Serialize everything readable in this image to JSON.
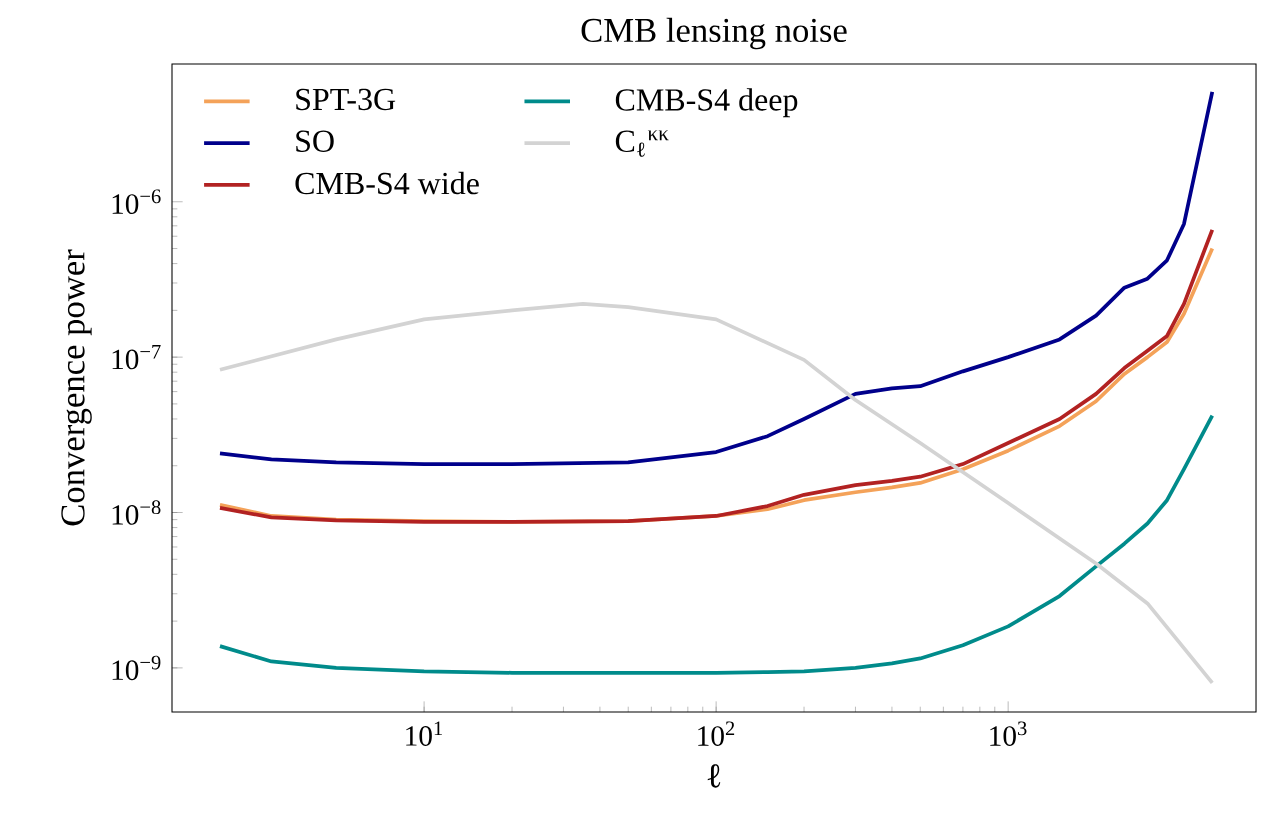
{
  "chart_data": {
    "type": "line",
    "title": "CMB lensing noise",
    "xlabel": "ℓ",
    "ylabel": "Convergence power",
    "log": "xy",
    "legend": "top left",
    "xlim": [
      1.37,
      7060
    ],
    "ylim": [
      5.2e-10,
      7.7e-06
    ],
    "xticks": [
      {
        "value": 10,
        "label": "10$^{1}$"
      },
      {
        "value": 100,
        "label": "10$^{2}$"
      },
      {
        "value": 1000,
        "label": "10$^{3}$"
      }
    ],
    "yticks": [
      {
        "value": 1e-09,
        "label": "10$^{−9}$"
      },
      {
        "value": 1e-08,
        "label": "10$^{−8}$"
      },
      {
        "value": 1e-07,
        "label": "10$^{−7}$"
      },
      {
        "value": 1e-06,
        "label": "10$^{−6}$"
      }
    ],
    "x": [
      2,
      3,
      5,
      10,
      20,
      50,
      100,
      150,
      200,
      300,
      400,
      500,
      700,
      1000,
      1500,
      2000,
      2500,
      3000,
      3500,
      4000,
      5000
    ],
    "series": [
      {
        "name": "SPT-3G",
        "color": "#f4a259",
        "values": [
          1.12e-08,
          9.5e-09,
          9e-09,
          8.8e-09,
          8.7e-09,
          8.8e-09,
          9.5e-09,
          1.05e-08,
          1.2e-08,
          1.35e-08,
          1.45e-08,
          1.55e-08,
          1.9e-08,
          2.5e-08,
          3.6e-08,
          5.2e-08,
          7.8e-08,
          1e-07,
          1.25e-07,
          1.9e-07,
          5e-07
        ]
      },
      {
        "name": "SO",
        "color": "#00008b",
        "values": [
          2.4e-08,
          2.2e-08,
          2.1e-08,
          2.05e-08,
          2.05e-08,
          2.1e-08,
          2.45e-08,
          3.1e-08,
          4e-08,
          5.8e-08,
          6.3e-08,
          6.5e-08,
          8.1e-08,
          1e-07,
          1.3e-07,
          1.85e-07,
          2.8e-07,
          3.2e-07,
          4.2e-07,
          7.2e-07,
          5.1e-06
        ]
      },
      {
        "name": "CMB-S4 wide",
        "color": "#b22222",
        "values": [
          1.07e-08,
          9.3e-09,
          8.9e-09,
          8.7e-09,
          8.7e-09,
          8.8e-09,
          9.5e-09,
          1.1e-08,
          1.3e-08,
          1.5e-08,
          1.6e-08,
          1.7e-08,
          2.05e-08,
          2.8e-08,
          4e-08,
          5.8e-08,
          8.5e-08,
          1.1e-07,
          1.37e-07,
          2.2e-07,
          6.6e-07
        ]
      },
      {
        "name": "CMB-S4 deep",
        "color": "#008b8b",
        "values": [
          1.38e-09,
          1.1e-09,
          1e-09,
          9.5e-10,
          9.3e-10,
          9.3e-10,
          9.3e-10,
          9.4e-10,
          9.5e-10,
          1e-09,
          1.07e-09,
          1.15e-09,
          1.4e-09,
          1.85e-09,
          2.9e-09,
          4.5e-09,
          6.3e-09,
          8.5e-09,
          1.2e-08,
          1.9e-08,
          4.2e-08
        ]
      },
      {
        "name": "C$_{ℓ}$$^{κκ}$",
        "color": "#d3d3d3",
        "x": [
          2,
          5,
          10,
          20,
          35,
          50,
          100,
          200,
          300,
          500,
          1000,
          2000,
          3000,
          5000
        ],
        "values": [
          8.3e-08,
          1.3e-07,
          1.75e-07,
          2e-07,
          2.2e-07,
          2.1e-07,
          1.75e-07,
          9.6e-08,
          5.3e-08,
          2.8e-08,
          1.15e-08,
          4.7e-09,
          2.6e-09,
          8e-10
        ]
      }
    ]
  }
}
